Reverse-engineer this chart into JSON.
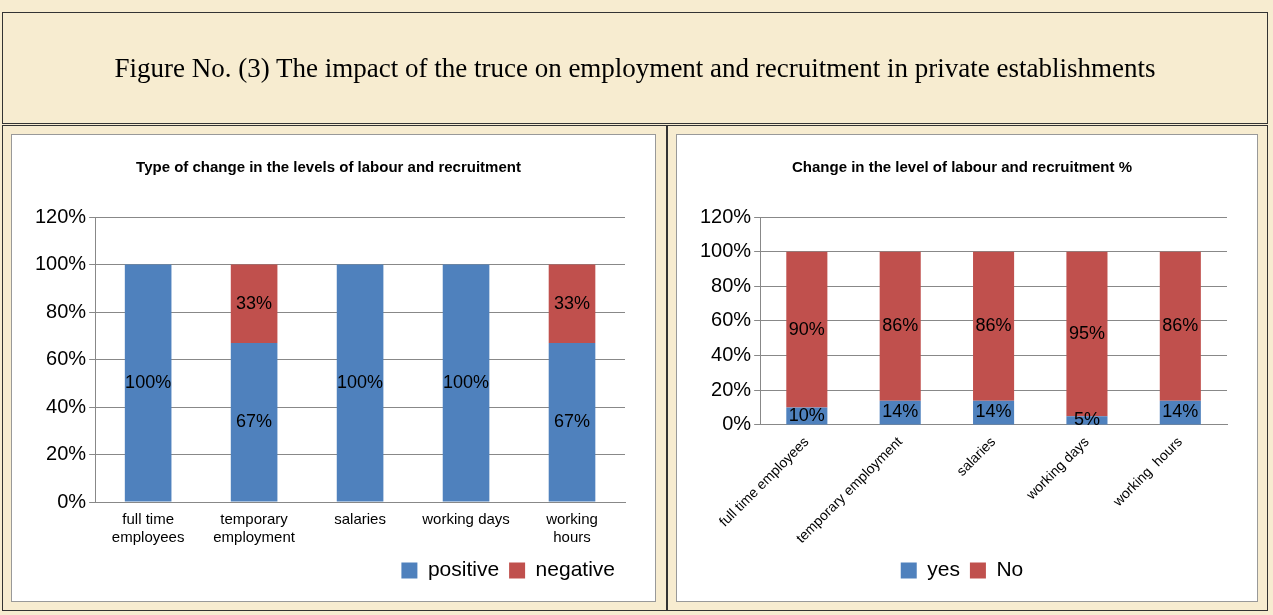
{
  "chart_data": [
    {
      "type": "bar",
      "title": "Type of change in the levels of labour and recruitment",
      "annotations": [
        "Figure No. (3) The impact of the truce on employment and recruitment in private establishments"
      ],
      "categories": [
        "full time employees",
        "temporary employment",
        "salaries",
        "working days",
        "working hours"
      ],
      "stacked": true,
      "series": [
        {
          "name": "positive",
          "color": "#4f81bd",
          "values": [
            100,
            67,
            100,
            100,
            67
          ],
          "value_labels": [
            "100%",
            "67%",
            "100%",
            "100%",
            "67%"
          ]
        },
        {
          "name": "negative",
          "color": "#c0504d",
          "values": [
            0,
            33,
            0,
            0,
            33
          ],
          "value_labels": [
            null,
            "33%",
            null,
            null,
            "33%"
          ]
        }
      ],
      "ylim": [
        0,
        120
      ],
      "yticks": [
        {
          "value": 0,
          "label": "0%"
        },
        {
          "value": 20,
          "label": "20%"
        },
        {
          "value": 40,
          "label": "40%"
        },
        {
          "value": 60,
          "label": "60%"
        },
        {
          "value": 80,
          "label": "80%"
        },
        {
          "value": 100,
          "label": "100%"
        },
        {
          "value": 120,
          "label": "120%"
        }
      ],
      "grid": "y",
      "legend": "bottom"
    },
    {
      "type": "bar",
      "title": "Change in the level of labour and recruitment %",
      "categories": [
        "full time employees",
        "temporary employment",
        "salaries",
        "working days",
        "working  hours"
      ],
      "stacked": true,
      "series": [
        {
          "name": "yes",
          "color": "#4f81bd",
          "values": [
            10,
            14,
            14,
            5,
            14
          ],
          "value_labels": [
            "10%",
            "14%",
            "14%",
            "5%",
            "14%"
          ]
        },
        {
          "name": "No",
          "color": "#c0504d",
          "values": [
            90,
            86,
            86,
            95,
            86
          ],
          "value_labels": [
            "90%",
            "86%",
            "86%",
            "95%",
            "86%"
          ]
        }
      ],
      "ylim": [
        0,
        120
      ],
      "yticks": [
        {
          "value": 0,
          "label": "0%"
        },
        {
          "value": 20,
          "label": "20%"
        },
        {
          "value": 40,
          "label": "40%"
        },
        {
          "value": 60,
          "label": "60%"
        },
        {
          "value": 80,
          "label": "80%"
        },
        {
          "value": 100,
          "label": "100%"
        },
        {
          "value": 120,
          "label": "120%"
        }
      ],
      "grid": "y",
      "legend": "bottom"
    }
  ]
}
